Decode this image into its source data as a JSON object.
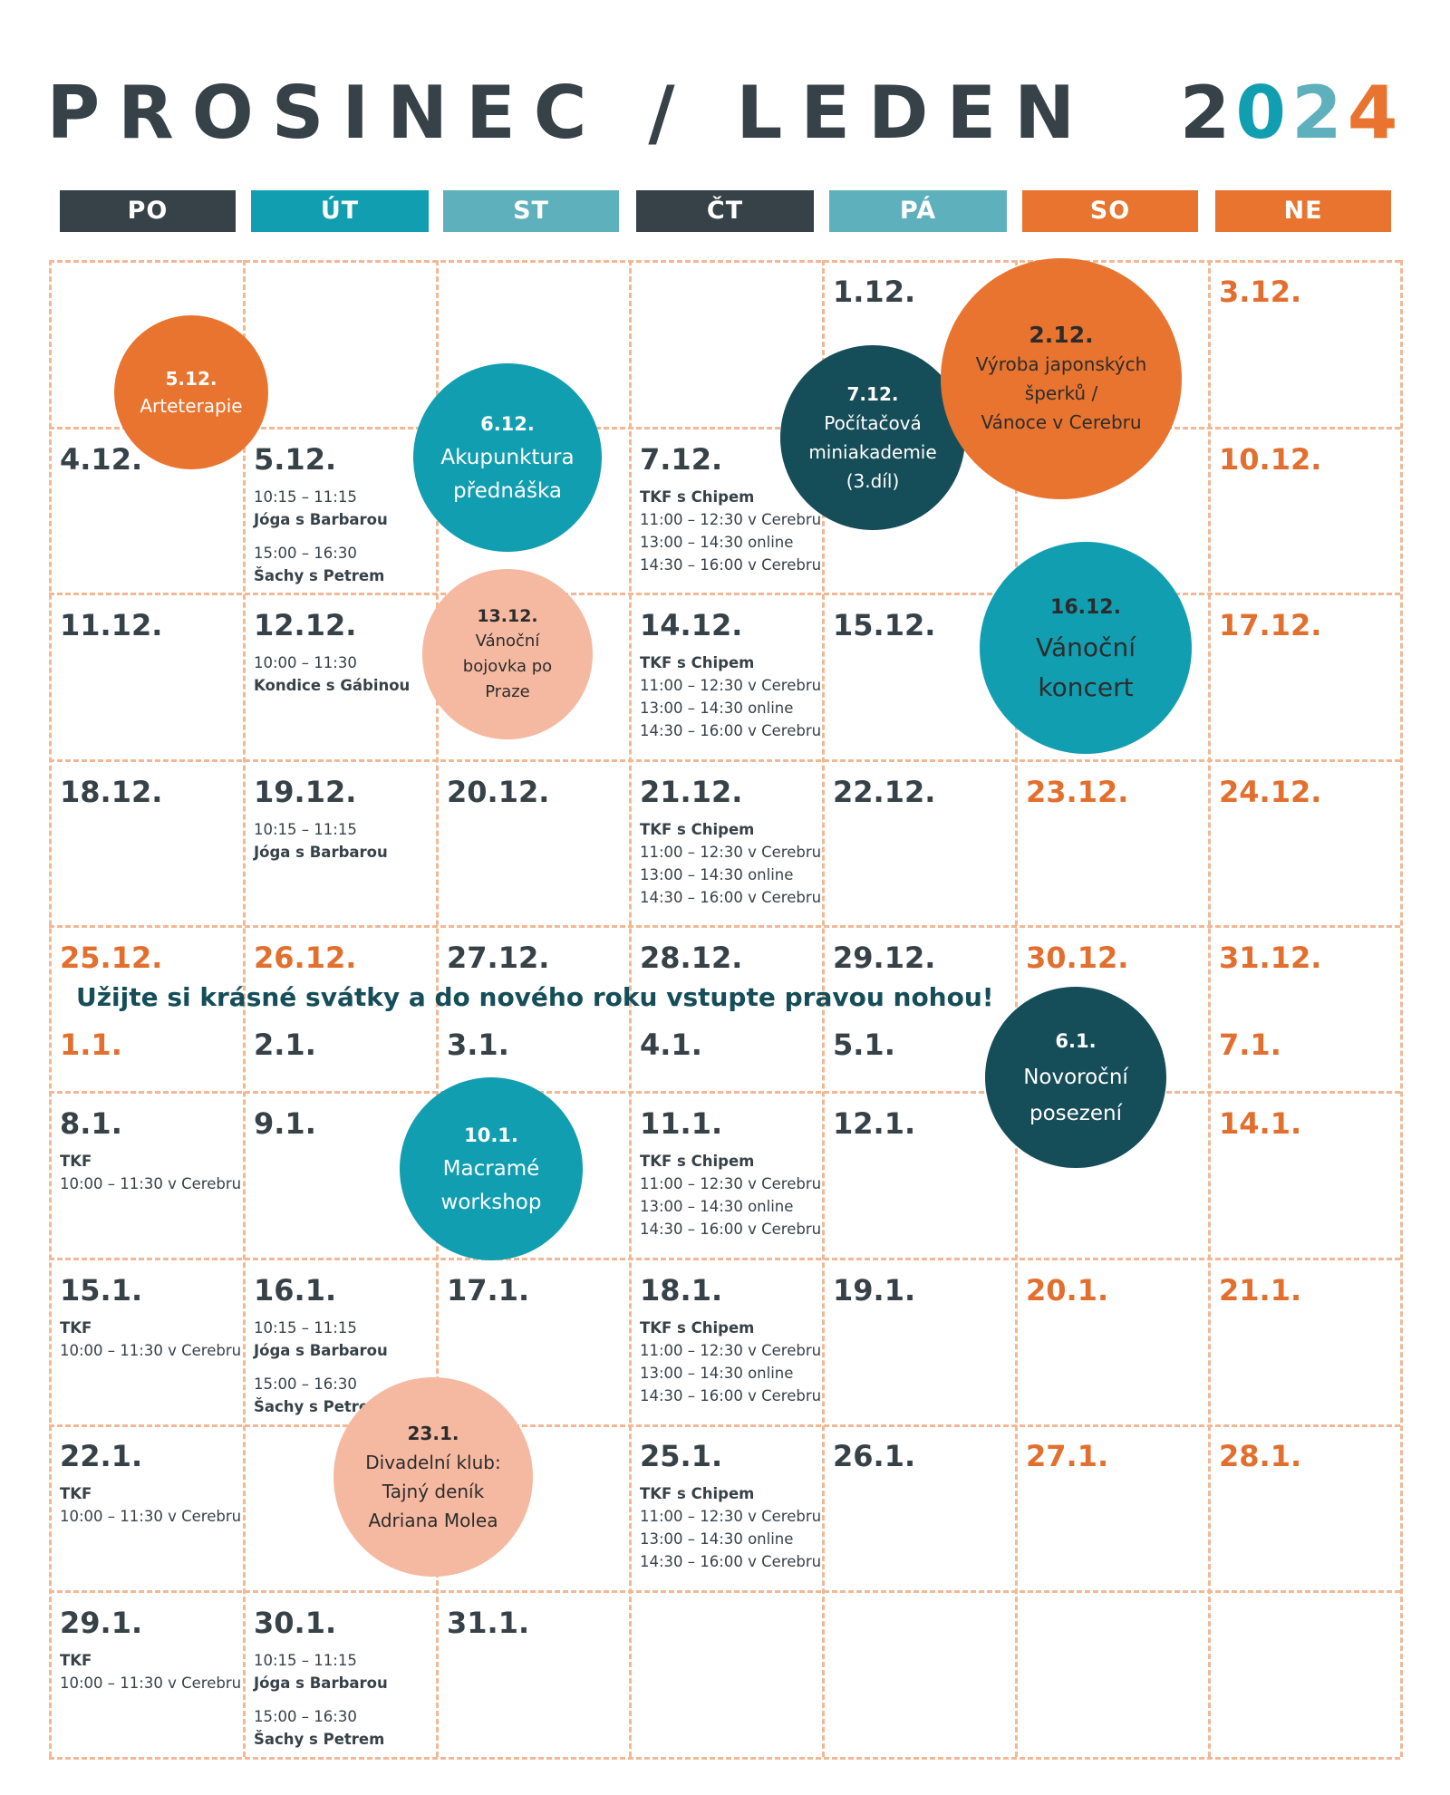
{
  "title": {
    "part1": "PROSINEC / LEDEN",
    "y1": "2",
    "y2": "0",
    "y3": "2",
    "y4": "4"
  },
  "colors": {
    "dark": "#374148",
    "teal": "#129eb1",
    "lightteal": "#5fb0bd",
    "orange": "#e8742f",
    "peach": "#f5b9a1",
    "darkteal": "#154d58"
  },
  "days": [
    "PO",
    "ÚT",
    "ST",
    "ČT",
    "PÁ",
    "SO",
    "NE"
  ],
  "note": "Užijte si krásné svátky a do nového roku vstupte pravou nohou!",
  "dates": [
    {
      "t": "1.12.",
      "c": 4,
      "r": 0,
      "we": false
    },
    {
      "t": "3.12.",
      "c": 6,
      "r": 0,
      "we": true
    },
    {
      "t": "4.12.",
      "c": 0,
      "r": 1,
      "we": false
    },
    {
      "t": "5.12.",
      "c": 1,
      "r": 1,
      "we": false
    },
    {
      "t": "7.12.",
      "c": 3,
      "r": 1,
      "we": false
    },
    {
      "t": "10.12.",
      "c": 6,
      "r": 1,
      "we": true
    },
    {
      "t": "11.12.",
      "c": 0,
      "r": 2,
      "we": false
    },
    {
      "t": "12.12.",
      "c": 1,
      "r": 2,
      "we": false
    },
    {
      "t": "14.12.",
      "c": 3,
      "r": 2,
      "we": false
    },
    {
      "t": "15.12.",
      "c": 4,
      "r": 2,
      "we": false
    },
    {
      "t": "17.12.",
      "c": 6,
      "r": 2,
      "we": true
    },
    {
      "t": "18.12.",
      "c": 0,
      "r": 3,
      "we": false
    },
    {
      "t": "19.12.",
      "c": 1,
      "r": 3,
      "we": false
    },
    {
      "t": "20.12.",
      "c": 2,
      "r": 3,
      "we": false
    },
    {
      "t": "21.12.",
      "c": 3,
      "r": 3,
      "we": false
    },
    {
      "t": "22.12.",
      "c": 4,
      "r": 3,
      "we": false
    },
    {
      "t": "23.12.",
      "c": 5,
      "r": 3,
      "we": true
    },
    {
      "t": "24.12.",
      "c": 6,
      "r": 3,
      "we": true
    },
    {
      "t": "25.12.",
      "c": 0,
      "r": 4,
      "we": true
    },
    {
      "t": "26.12.",
      "c": 1,
      "r": 4,
      "we": true
    },
    {
      "t": "27.12.",
      "c": 2,
      "r": 4,
      "we": false
    },
    {
      "t": "28.12.",
      "c": 3,
      "r": 4,
      "we": false
    },
    {
      "t": "29.12.",
      "c": 4,
      "r": 4,
      "we": false
    },
    {
      "t": "30.12.",
      "c": 5,
      "r": 4,
      "we": true
    },
    {
      "t": "31.12.",
      "c": 6,
      "r": 4,
      "we": true
    },
    {
      "t": "1.1.",
      "c": 0,
      "r": 4.5,
      "we": true
    },
    {
      "t": "2.1.",
      "c": 1,
      "r": 4.5,
      "we": false
    },
    {
      "t": "3.1.",
      "c": 2,
      "r": 4.5,
      "we": false
    },
    {
      "t": "4.1.",
      "c": 3,
      "r": 4.5,
      "we": false
    },
    {
      "t": "5.1.",
      "c": 4,
      "r": 4.5,
      "we": false
    },
    {
      "t": "7.1.",
      "c": 6,
      "r": 4.5,
      "we": true
    },
    {
      "t": "8.1.",
      "c": 0,
      "r": 5,
      "we": false
    },
    {
      "t": "9.1.",
      "c": 1,
      "r": 5,
      "we": false
    },
    {
      "t": "11.1.",
      "c": 3,
      "r": 5,
      "we": false
    },
    {
      "t": "12.1.",
      "c": 4,
      "r": 5,
      "we": false
    },
    {
      "t": "14.1.",
      "c": 6,
      "r": 5,
      "we": true
    },
    {
      "t": "15.1.",
      "c": 0,
      "r": 6,
      "we": false
    },
    {
      "t": "16.1.",
      "c": 1,
      "r": 6,
      "we": false
    },
    {
      "t": "17.1.",
      "c": 2,
      "r": 6,
      "we": false
    },
    {
      "t": "18.1.",
      "c": 3,
      "r": 6,
      "we": false
    },
    {
      "t": "19.1.",
      "c": 4,
      "r": 6,
      "we": false
    },
    {
      "t": "20.1.",
      "c": 5,
      "r": 6,
      "we": true
    },
    {
      "t": "21.1.",
      "c": 6,
      "r": 6,
      "we": true
    },
    {
      "t": "22.1.",
      "c": 0,
      "r": 7,
      "we": false
    },
    {
      "t": "25.1.",
      "c": 3,
      "r": 7,
      "we": false
    },
    {
      "t": "26.1.",
      "c": 4,
      "r": 7,
      "we": false
    },
    {
      "t": "27.1.",
      "c": 5,
      "r": 7,
      "we": true
    },
    {
      "t": "28.1.",
      "c": 6,
      "r": 7,
      "we": true
    },
    {
      "t": "29.1.",
      "c": 0,
      "r": 8,
      "we": false
    },
    {
      "t": "30.1.",
      "c": 1,
      "r": 8,
      "we": false
    },
    {
      "t": "31.1.",
      "c": 2,
      "r": 8,
      "we": false
    }
  ],
  "events": [
    {
      "c": 1,
      "r": 1,
      "lines": [
        {
          "t": "10:15 – 11:15",
          "s": "orange"
        },
        {
          "t": "Jóga s Barbarou",
          "s": "orange bold"
        },
        {
          "t": "",
          "s": "gap"
        },
        {
          "t": "15:00 – 16:30",
          "s": "dark"
        },
        {
          "t": "Šachy s Petrem",
          "s": "dark bold"
        }
      ]
    },
    {
      "c": 3,
      "r": 1,
      "lines": [
        {
          "t": "TKF s Chipem",
          "s": "teal bold"
        },
        {
          "t": "11:00 – 12:30 v Cerebru",
          "s": "teal"
        },
        {
          "t": "13:00 – 14:30 online",
          "s": "teal"
        },
        {
          "t": "14:30 – 16:00 v Cerebru",
          "s": "teal"
        }
      ]
    },
    {
      "c": 1,
      "r": 2,
      "lines": [
        {
          "t": "10:00 – 11:30",
          "s": "orange"
        },
        {
          "t": "Kondice s Gábinou",
          "s": "orange bold"
        }
      ]
    },
    {
      "c": 3,
      "r": 2,
      "lines": [
        {
          "t": "TKF s Chipem",
          "s": "teal bold"
        },
        {
          "t": "11:00 – 12:30 v Cerebru",
          "s": "teal"
        },
        {
          "t": "13:00 – 14:30 online",
          "s": "teal"
        },
        {
          "t": "14:30 – 16:00 v Cerebru",
          "s": "teal"
        }
      ]
    },
    {
      "c": 1,
      "r": 3,
      "lines": [
        {
          "t": "10:15 – 11:15",
          "s": "orange"
        },
        {
          "t": "Jóga s Barbarou",
          "s": "orange bold"
        }
      ]
    },
    {
      "c": 3,
      "r": 3,
      "lines": [
        {
          "t": "TKF s Chipem",
          "s": "teal bold"
        },
        {
          "t": "11:00 – 12:30 v Cerebru",
          "s": "teal"
        },
        {
          "t": "13:00 – 14:30 online",
          "s": "teal"
        },
        {
          "t": "14:30 – 16:00 v Cerebru",
          "s": "teal"
        }
      ]
    },
    {
      "c": 0,
      "r": 5,
      "lines": [
        {
          "t": "TKF",
          "s": "teal bold"
        },
        {
          "t": "10:00 – 11:30 v Cerebru",
          "s": "teal"
        }
      ]
    },
    {
      "c": 3,
      "r": 5,
      "lines": [
        {
          "t": "TKF s Chipem",
          "s": "teal bold"
        },
        {
          "t": "11:00 – 12:30 v Cerebru",
          "s": "teal"
        },
        {
          "t": "13:00 – 14:30 online",
          "s": "teal"
        },
        {
          "t": "14:30 – 16:00 v Cerebru",
          "s": "teal"
        }
      ]
    },
    {
      "c": 0,
      "r": 6,
      "lines": [
        {
          "t": "TKF",
          "s": "teal bold"
        },
        {
          "t": "10:00 – 11:30 v Cerebru",
          "s": "teal"
        }
      ]
    },
    {
      "c": 1,
      "r": 6,
      "lines": [
        {
          "t": "10:15 – 11:15",
          "s": "orange"
        },
        {
          "t": "Jóga s Barbarou",
          "s": "orange bold"
        },
        {
          "t": "",
          "s": "gap"
        },
        {
          "t": "15:00 – 16:30",
          "s": "dark"
        },
        {
          "t": "Šachy s Petrem",
          "s": "dark bold"
        }
      ]
    },
    {
      "c": 3,
      "r": 6,
      "lines": [
        {
          "t": "TKF s Chipem",
          "s": "teal bold"
        },
        {
          "t": "11:00 – 12:30 v Cerebru",
          "s": "teal"
        },
        {
          "t": "13:00 – 14:30 online",
          "s": "teal"
        },
        {
          "t": "14:30 – 16:00 v Cerebru",
          "s": "teal"
        }
      ]
    },
    {
      "c": 0,
      "r": 7,
      "lines": [
        {
          "t": "TKF",
          "s": "teal bold"
        },
        {
          "t": "10:00 – 11:30 v Cerebru",
          "s": "teal"
        }
      ]
    },
    {
      "c": 3,
      "r": 7,
      "lines": [
        {
          "t": "TKF s Chipem",
          "s": "teal bold"
        },
        {
          "t": "11:00 – 12:30 v Cerebru",
          "s": "teal"
        },
        {
          "t": "13:00 – 14:30 online",
          "s": "teal"
        },
        {
          "t": "14:30 – 16:00 v Cerebru",
          "s": "teal"
        }
      ]
    },
    {
      "c": 0,
      "r": 8,
      "lines": [
        {
          "t": "TKF",
          "s": "teal bold"
        },
        {
          "t": "10:00 – 11:30 v Cerebru",
          "s": "teal"
        }
      ]
    },
    {
      "c": 1,
      "r": 8,
      "lines": [
        {
          "t": "10:15 – 11:15",
          "s": "orange"
        },
        {
          "t": "Jóga s Barbarou",
          "s": "orange bold"
        },
        {
          "t": "",
          "s": "gap"
        },
        {
          "t": "15:00 – 16:30",
          "s": "dark"
        },
        {
          "t": "Šachy s Petrem",
          "s": "dark bold"
        }
      ]
    }
  ],
  "circles": [
    {
      "id": "arteterapie",
      "date": "5.12.",
      "lines": [
        "Arteterapie"
      ],
      "color": "#e8742f"
    },
    {
      "id": "akupunktura",
      "date": "6.12.",
      "lines": [
        "Akupunktura",
        "přednáška"
      ],
      "color": "#129eb1"
    },
    {
      "id": "pocitacova",
      "date": "7.12.",
      "lines": [
        "Počítačová",
        "miniakademie",
        "(3.díl)"
      ],
      "color": "#154d58"
    },
    {
      "id": "japonske-sperky",
      "date": "2.12.",
      "lines": [
        "Výroba japonských",
        "šperků /",
        "Vánoce v Cerebru"
      ],
      "color": "#e8742f"
    },
    {
      "id": "bojovka",
      "date": "13.12.",
      "lines": [
        "Vánoční",
        "bojovka po",
        "Praze"
      ],
      "color": "#f5b9a1"
    },
    {
      "id": "koncert",
      "date": "16.12.",
      "lines": [
        "Vánoční",
        "koncert"
      ],
      "color": "#129eb1"
    },
    {
      "id": "novorocni",
      "date": "6.1.",
      "lines": [
        "Novoroční",
        "posezení"
      ],
      "color": "#154d58"
    },
    {
      "id": "macrame",
      "date": "10.1.",
      "lines": [
        "Macramé",
        "workshop"
      ],
      "color": "#129eb1"
    },
    {
      "id": "divadelni",
      "date": "23.1.",
      "lines": [
        "Divadelní klub:",
        "Tajný deník",
        "Adriana Molea"
      ],
      "color": "#f5b9a1"
    }
  ]
}
